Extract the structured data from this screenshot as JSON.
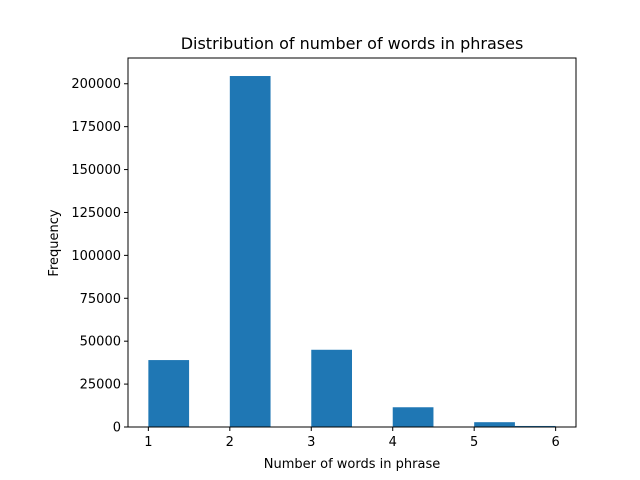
{
  "chart_data": {
    "type": "bar",
    "title": "Distribution of number of words in phrases",
    "xlabel": "Number of words in phrase",
    "ylabel": "Frequency",
    "bins": [
      {
        "x0": 1.0,
        "x1": 1.5,
        "value": 39000
      },
      {
        "x0": 1.5,
        "x1": 2.0,
        "value": 0
      },
      {
        "x0": 2.0,
        "x1": 2.5,
        "value": 204500
      },
      {
        "x0": 2.5,
        "x1": 3.0,
        "value": 0
      },
      {
        "x0": 3.0,
        "x1": 3.5,
        "value": 45000
      },
      {
        "x0": 3.5,
        "x1": 4.0,
        "value": 0
      },
      {
        "x0": 4.0,
        "x1": 4.5,
        "value": 11500
      },
      {
        "x0": 4.5,
        "x1": 5.0,
        "value": 0
      },
      {
        "x0": 5.0,
        "x1": 5.5,
        "value": 2800
      },
      {
        "x0": 5.5,
        "x1": 6.0,
        "value": 600
      }
    ],
    "xlim": [
      0.75,
      6.25
    ],
    "ylim": [
      0,
      215000
    ],
    "xticks": [
      1,
      2,
      3,
      4,
      5,
      6
    ],
    "yticks": [
      0,
      25000,
      50000,
      75000,
      100000,
      125000,
      150000,
      175000,
      200000
    ],
    "grid": false,
    "bar_color": "#1f77b4"
  }
}
